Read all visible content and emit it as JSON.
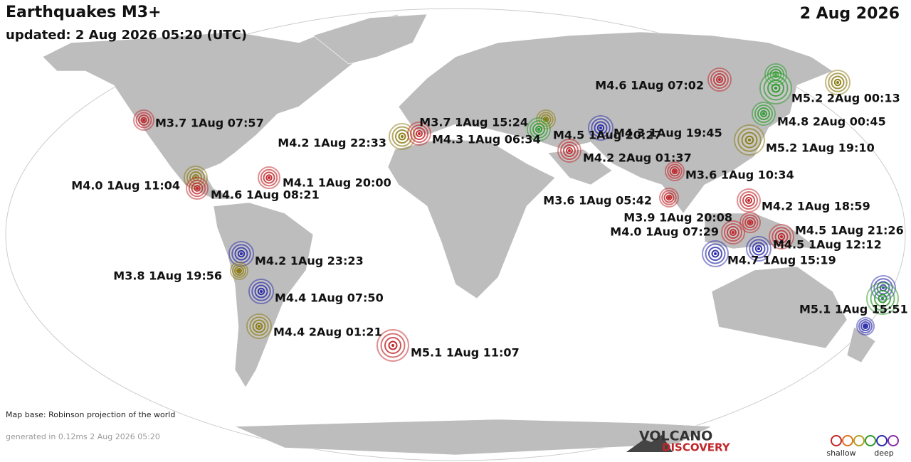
{
  "header": {
    "title": "Earthquakes M3+",
    "updated": "updated:  2 Aug 2026 05:20 (UTC)",
    "date": "2 Aug 2026"
  },
  "events": [
    {
      "label": "M3.7 1Aug 07:57",
      "color": "#c0262a"
    },
    {
      "label": "M4.0 1Aug 11:04",
      "color": "#8a7a10"
    },
    {
      "label": "M4.6 1Aug 08:21",
      "color": "#c0262a"
    },
    {
      "label": "M4.1 1Aug 20:00",
      "color": "#c0262a"
    },
    {
      "label": "M4.2 1Aug 23:23",
      "color": "#2a2aa8"
    },
    {
      "label": "M3.8 1Aug 19:56",
      "color": "#8a7a10"
    },
    {
      "label": "M4.4 1Aug 07:50",
      "color": "#2a2aa8"
    },
    {
      "label": "M4.4 2Aug 01:21",
      "color": "#8a7a10"
    },
    {
      "label": "M5.1 1Aug 11:07",
      "color": "#c0262a"
    },
    {
      "label": "M4.2 1Aug 22:33",
      "color": "#8a7a10"
    },
    {
      "label": "M4.3 1Aug 06:34",
      "color": "#c0262a"
    },
    {
      "label": "M3.7 1Aug 15:24",
      "color": "#8a7a10"
    },
    {
      "label": "M4.5 1Aug 20:27",
      "color": "#2a9a2a"
    },
    {
      "label": "M4.3 1Aug 19:45",
      "color": "#2a2aa8"
    },
    {
      "label": "M4.2 2Aug 01:37",
      "color": "#c0262a"
    },
    {
      "label": "M4.6 1Aug 07:02",
      "color": "#c0262a"
    },
    {
      "label": "M5.2 2Aug 00:13",
      "color": "#2a9a2a"
    },
    {
      "label": "M4.8 2Aug 00:45",
      "color": "#2a9a2a"
    },
    {
      "label": "M5.2 1Aug 19:10",
      "color": "#8a7a10"
    },
    {
      "label": "M3.6 1Aug 10:34",
      "color": "#c0262a"
    },
    {
      "label": "M3.6 1Aug 05:42",
      "color": "#c0262a"
    },
    {
      "label": "M4.2 1Aug 18:59",
      "color": "#c0262a"
    },
    {
      "label": "M3.9 1Aug 20:08",
      "color": "#c0262a"
    },
    {
      "label": "M4.0 1Aug 07:29",
      "color": "#c0262a"
    },
    {
      "label": "M4.5 1Aug 21:26",
      "color": "#c0262a"
    },
    {
      "label": "M4.5 1Aug 12:12",
      "color": "#2a2aa8"
    },
    {
      "label": "M4.7 1Aug 15:19",
      "color": "#2a2aa8"
    },
    {
      "label": "M5.1 1Aug 15:51",
      "color": "#2a9a2a"
    }
  ],
  "footer": {
    "map_base": "Map base: Robinson projection of the world",
    "generated": "generated in 0.12ms 2 Aug 2026 05:20",
    "logo_top": "VOLCANO",
    "logo_bottom": "DISCOVERY",
    "legend_shallow": "shallow",
    "legend_deep": "deep"
  }
}
